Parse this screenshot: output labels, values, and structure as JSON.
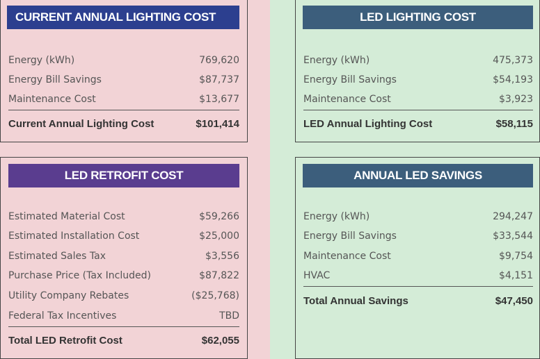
{
  "colors": {
    "left_bg": "#f2d3d6",
    "right_bg": "#d4ecd7",
    "header_navy": "#2c3f8f",
    "header_purple": "#5a3d8f",
    "header_teal": "#3c5e7c"
  },
  "current": {
    "title": "CURRENT ANNUAL LIGHTING COST",
    "rows": [
      {
        "label": "Energy (kWh)",
        "value": "769,620"
      },
      {
        "label": "Energy Bill Savings",
        "value": "$87,737"
      },
      {
        "label": "Maintenance Cost",
        "value": "$13,677"
      }
    ],
    "total_label": "Current Annual Lighting Cost",
    "total_value": "$101,414"
  },
  "led": {
    "title": "LED LIGHTING COST",
    "rows": [
      {
        "label": "Energy (kWh)",
        "value": "475,373"
      },
      {
        "label": "Energy Bill Savings",
        "value": "$54,193"
      },
      {
        "label": "Maintenance Cost",
        "value": "$3,923"
      }
    ],
    "total_label": "LED Annual Lighting Cost",
    "total_value": "$58,115"
  },
  "retrofit": {
    "title": "LED RETROFIT COST",
    "rows": [
      {
        "label": "Estimated Material Cost",
        "value": "$59,266"
      },
      {
        "label": "Estimated Installation Cost",
        "value": "$25,000"
      },
      {
        "label": "Estimated Sales Tax",
        "value": "$3,556"
      },
      {
        "label": "Purchase Price (Tax Included)",
        "value": "$87,822"
      },
      {
        "label": "Utility Company Rebates",
        "value": "($25,768)"
      },
      {
        "label": "Federal Tax Incentives",
        "value": "TBD"
      }
    ],
    "total_label": "Total LED Retrofit Cost",
    "total_value": "$62,055"
  },
  "savings": {
    "title": "ANNUAL LED SAVINGS",
    "rows": [
      {
        "label": "Energy (kWh)",
        "value": "294,247"
      },
      {
        "label": "Energy Bill Savings",
        "value": "$33,544"
      },
      {
        "label": "Maintenance Cost",
        "value": "$9,754"
      },
      {
        "label": "HVAC",
        "value": "$4,151"
      }
    ],
    "total_label": "Total Annual Savings",
    "total_value": "$47,450"
  }
}
